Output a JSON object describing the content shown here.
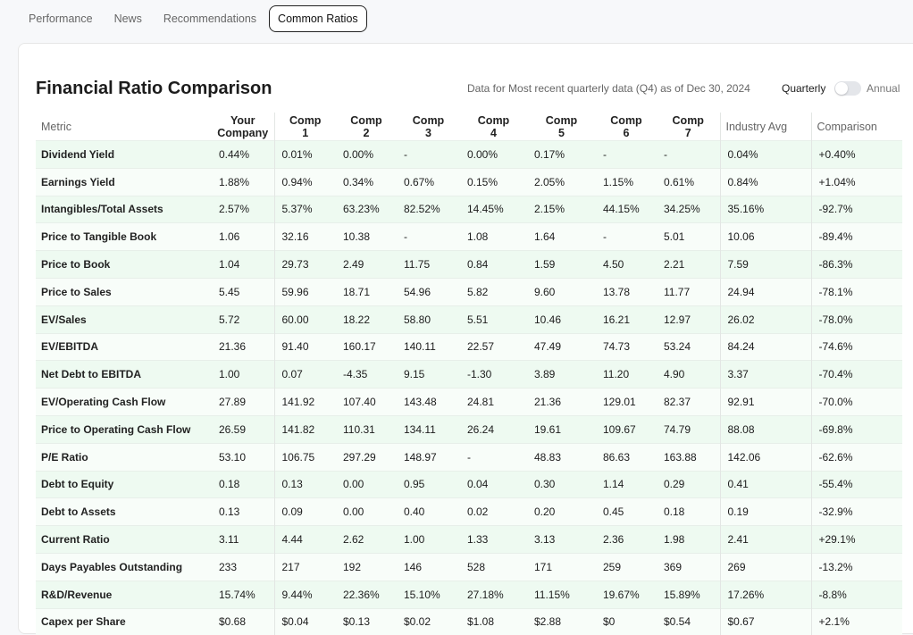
{
  "tabs": [
    "Performance",
    "News",
    "Recommendations",
    "Common Ratios"
  ],
  "active_tab": "Common Ratios",
  "title": "Financial Ratio Comparison",
  "subtitle": "Data for Most recent quarterly data (Q4) as of Dec 30, 2024",
  "toggle": {
    "left": "Quarterly",
    "right": "Annual"
  },
  "table": {
    "header": [
      "Metric",
      "Your Company",
      "Comp 1",
      "Comp 2",
      "Comp 3",
      "Comp 4",
      "Comp 5",
      "Comp 6",
      "Comp 7",
      "Industry Avg",
      "Comparison"
    ],
    "rows": [
      [
        "Dividend Yield",
        "0.44%",
        "0.01%",
        "0.00%",
        "-",
        "0.00%",
        "0.17%",
        "-",
        "-",
        "0.04%",
        "+0.40%"
      ],
      [
        "Earnings Yield",
        "1.88%",
        "0.94%",
        "0.34%",
        "0.67%",
        "0.15%",
        "2.05%",
        "1.15%",
        "0.61%",
        "0.84%",
        "+1.04%"
      ],
      [
        "Intangibles/Total Assets",
        "2.57%",
        "5.37%",
        "63.23%",
        "82.52%",
        "14.45%",
        "2.15%",
        "44.15%",
        "34.25%",
        "35.16%",
        "-92.7%"
      ],
      [
        "Price to Tangible Book",
        "1.06",
        "32.16",
        "10.38",
        "-",
        "1.08",
        "1.64",
        "-",
        "5.01",
        "10.06",
        "-89.4%"
      ],
      [
        "Price to Book",
        "1.04",
        "29.73",
        "2.49",
        "11.75",
        "0.84",
        "1.59",
        "4.50",
        "2.21",
        "7.59",
        "-86.3%"
      ],
      [
        "Price to Sales",
        "5.45",
        "59.96",
        "18.71",
        "54.96",
        "5.82",
        "9.60",
        "13.78",
        "11.77",
        "24.94",
        "-78.1%"
      ],
      [
        "EV/Sales",
        "5.72",
        "60.00",
        "18.22",
        "58.80",
        "5.51",
        "10.46",
        "16.21",
        "12.97",
        "26.02",
        "-78.0%"
      ],
      [
        "EV/EBITDA",
        "21.36",
        "91.40",
        "160.17",
        "140.11",
        "22.57",
        "47.49",
        "74.73",
        "53.24",
        "84.24",
        "-74.6%"
      ],
      [
        "Net Debt to EBITDA",
        "1.00",
        "0.07",
        "-4.35",
        "9.15",
        "-1.30",
        "3.89",
        "11.20",
        "4.90",
        "3.37",
        "-70.4%"
      ],
      [
        "EV/Operating Cash Flow",
        "27.89",
        "141.92",
        "107.40",
        "143.48",
        "24.81",
        "21.36",
        "129.01",
        "82.37",
        "92.91",
        "-70.0%"
      ],
      [
        "Price to Operating Cash Flow",
        "26.59",
        "141.82",
        "110.31",
        "134.11",
        "26.24",
        "19.61",
        "109.67",
        "74.79",
        "88.08",
        "-69.8%"
      ],
      [
        "P/E Ratio",
        "53.10",
        "106.75",
        "297.29",
        "148.97",
        "-",
        "48.83",
        "86.63",
        "163.88",
        "142.06",
        "-62.6%"
      ],
      [
        "Debt to Equity",
        "0.18",
        "0.13",
        "0.00",
        "0.95",
        "0.04",
        "0.30",
        "1.14",
        "0.29",
        "0.41",
        "-55.4%"
      ],
      [
        "Debt to Assets",
        "0.13",
        "0.09",
        "0.00",
        "0.40",
        "0.02",
        "0.20",
        "0.45",
        "0.18",
        "0.19",
        "-32.9%"
      ],
      [
        "Current Ratio",
        "3.11",
        "4.44",
        "2.62",
        "1.00",
        "1.33",
        "3.13",
        "2.36",
        "1.98",
        "2.41",
        "+29.1%"
      ],
      [
        "Days Payables Outstanding",
        "233",
        "217",
        "192",
        "146",
        "528",
        "171",
        "259",
        "369",
        "269",
        "-13.2%"
      ],
      [
        "R&D/Revenue",
        "15.74%",
        "9.44%",
        "22.36%",
        "15.10%",
        "27.18%",
        "11.15%",
        "19.67%",
        "15.89%",
        "17.26%",
        "-8.8%"
      ],
      [
        "Capex per Share",
        "$0.68",
        "$0.04",
        "$0.13",
        "$0.02",
        "$1.08",
        "$2.88",
        "$0",
        "$0.54",
        "$0.67",
        "+2.1%"
      ]
    ]
  }
}
